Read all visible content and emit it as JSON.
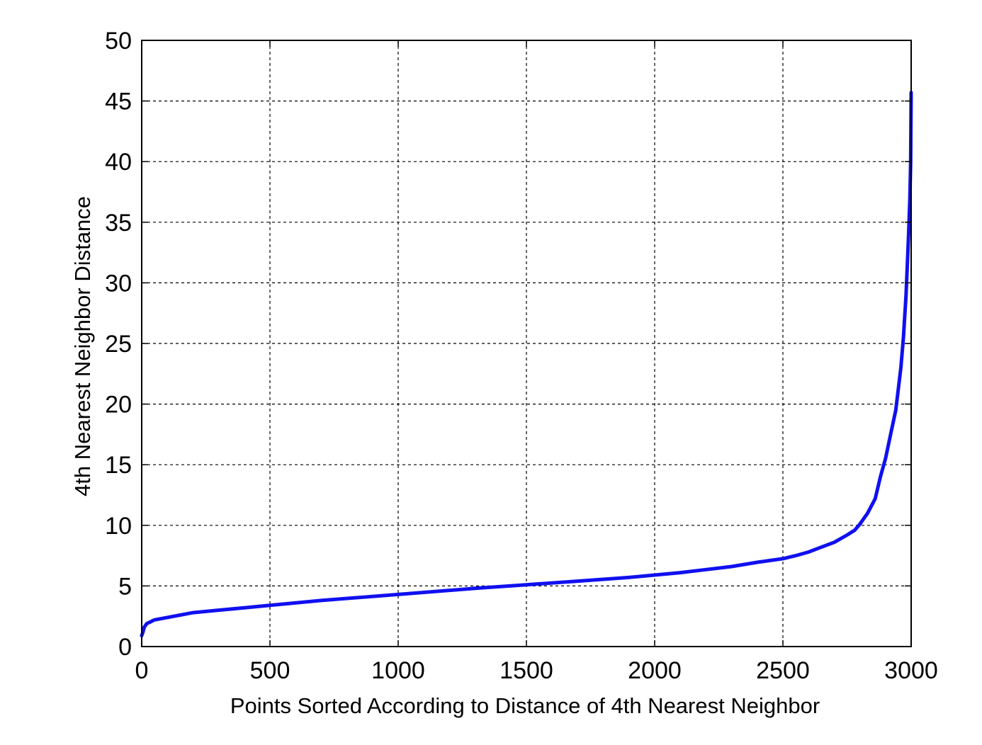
{
  "chart_data": {
    "type": "line",
    "title": "",
    "xlabel": "Points Sorted According to Distance of 4th Nearest Neighbor",
    "ylabel": "4th Nearest Neighbor Distance",
    "xlim": [
      0,
      3000
    ],
    "ylim": [
      0,
      50
    ],
    "xticks": [
      0,
      500,
      1000,
      1500,
      2000,
      2500,
      3000
    ],
    "yticks": [
      0,
      5,
      10,
      15,
      20,
      25,
      30,
      35,
      40,
      45,
      50
    ],
    "xtick_labels": [
      "0",
      "500",
      "1000",
      "1500",
      "2000",
      "2500",
      "3000"
    ],
    "ytick_labels": [
      "0",
      "5",
      "10",
      "15",
      "20",
      "25",
      "30",
      "35",
      "40",
      "45",
      "50"
    ],
    "grid": true,
    "grid_style": "dotted",
    "legend": "none",
    "line_color": "#1010f0",
    "series": [
      {
        "x": [
          0,
          5,
          10,
          20,
          30,
          50,
          100,
          150,
          200,
          300,
          400,
          500,
          700,
          1000,
          1300,
          1500,
          1700,
          1900,
          2000,
          2100,
          2200,
          2300,
          2400,
          2500,
          2550,
          2600,
          2650,
          2700,
          2750,
          2780,
          2800,
          2830,
          2860,
          2880,
          2900,
          2920,
          2940,
          2960,
          2970,
          2980,
          2990,
          2995,
          2998,
          3000
        ],
        "y": [
          0.9,
          1.2,
          1.6,
          1.9,
          2.0,
          2.2,
          2.4,
          2.6,
          2.8,
          3.0,
          3.2,
          3.4,
          3.8,
          4.3,
          4.8,
          5.1,
          5.4,
          5.7,
          5.9,
          6.1,
          6.35,
          6.6,
          6.95,
          7.25,
          7.5,
          7.8,
          8.2,
          8.6,
          9.2,
          9.6,
          10.1,
          11.0,
          12.2,
          14.0,
          15.5,
          17.5,
          19.5,
          23.0,
          25.5,
          29.0,
          34.0,
          37.0,
          40.0,
          45.7
        ]
      }
    ]
  }
}
